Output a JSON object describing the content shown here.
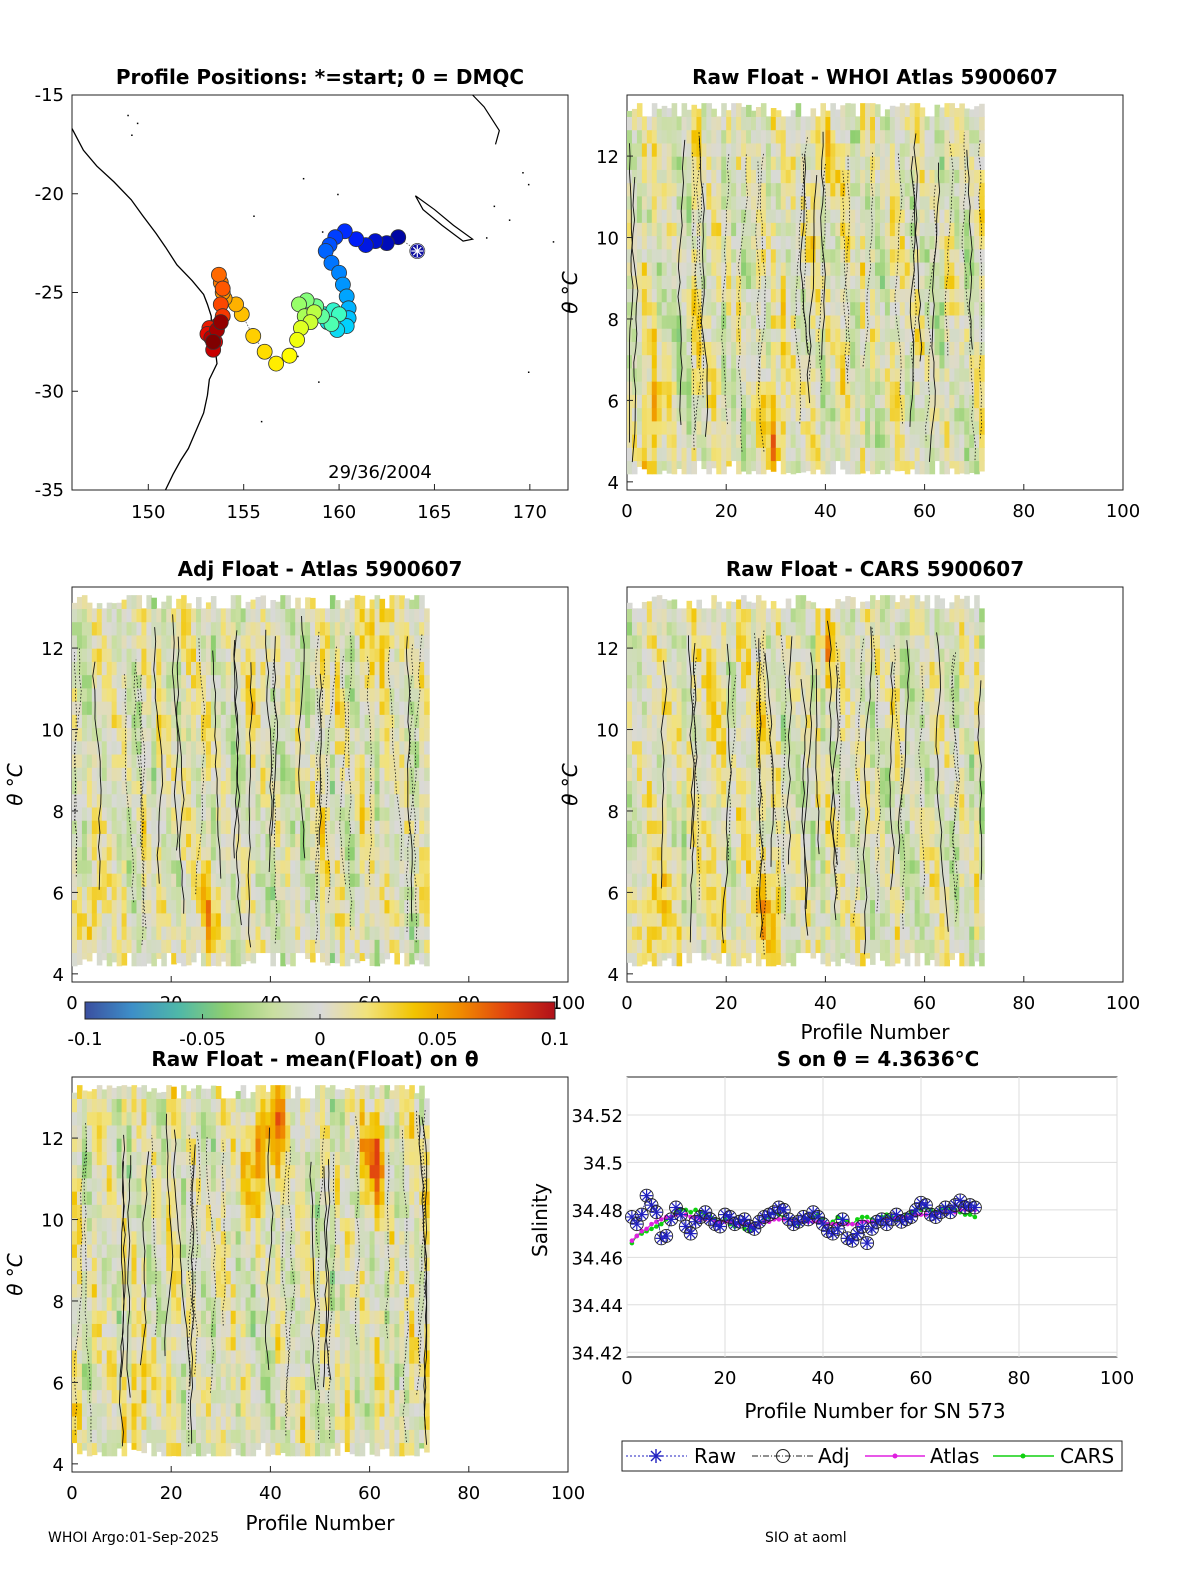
{
  "footer": {
    "left": "WHOI Argo:01-Sep-2025",
    "right": "SIO at aoml"
  },
  "colormap": {
    "stops": [
      "#3b4fa0",
      "#3d8fc8",
      "#4fb8a8",
      "#8fcf70",
      "#c9dfa0",
      "#d9d9d9",
      "#f2e27a",
      "#f2c400",
      "#f08a00",
      "#e04010",
      "#b0101a"
    ],
    "ticks": [
      "-0.1",
      "-0.05",
      "0",
      "0.05",
      "0.1"
    ]
  },
  "chart_data": [
    {
      "id": "map",
      "type": "scatter",
      "title": "Profile Positions: *=start; 0 = DMQC",
      "xlabel": "",
      "ylabel": "",
      "xlim": [
        146,
        172
      ],
      "ylim": [
        -35,
        -15
      ],
      "xticks": [
        "150",
        "155",
        "160",
        "165",
        "170"
      ],
      "yticks": [
        "-15",
        "-20",
        "-25",
        "-30",
        "-35"
      ],
      "annotation": "29/36/2004",
      "start_marker": [
        164.1,
        -22.9
      ],
      "track": [
        [
          164.1,
          -22.9
        ],
        [
          163.1,
          -22.2
        ],
        [
          162.5,
          -22.5
        ],
        [
          161.9,
          -22.4
        ],
        [
          161.4,
          -22.6
        ],
        [
          160.9,
          -22.3
        ],
        [
          160.3,
          -21.9
        ],
        [
          159.8,
          -22.2
        ],
        [
          159.5,
          -22.6
        ],
        [
          159.3,
          -22.9
        ],
        [
          159.6,
          -23.5
        ],
        [
          160.0,
          -24.0
        ],
        [
          160.2,
          -24.6
        ],
        [
          160.4,
          -25.2
        ],
        [
          160.5,
          -25.8
        ],
        [
          160.5,
          -26.3
        ],
        [
          160.4,
          -26.7
        ],
        [
          159.9,
          -26.9
        ],
        [
          159.4,
          -26.5
        ],
        [
          159.2,
          -26.1
        ],
        [
          159.7,
          -25.9
        ],
        [
          160.0,
          -26.1
        ],
        [
          159.6,
          -26.6
        ],
        [
          159.1,
          -26.2
        ],
        [
          158.8,
          -25.7
        ],
        [
          158.3,
          -25.4
        ],
        [
          157.9,
          -25.6
        ],
        [
          158.2,
          -26.2
        ],
        [
          158.7,
          -26.0
        ],
        [
          158.5,
          -26.5
        ],
        [
          158.0,
          -26.8
        ],
        [
          157.8,
          -27.4
        ],
        [
          157.4,
          -28.2
        ],
        [
          156.7,
          -28.6
        ],
        [
          156.1,
          -28.0
        ],
        [
          155.5,
          -27.2
        ],
        [
          154.9,
          -26.1
        ],
        [
          154.6,
          -25.6
        ],
        [
          154.0,
          -25.3
        ],
        [
          153.9,
          -25.0
        ],
        [
          153.8,
          -24.5
        ],
        [
          153.7,
          -24.1
        ],
        [
          153.9,
          -24.8
        ],
        [
          153.8,
          -25.6
        ],
        [
          153.9,
          -26.2
        ],
        [
          153.6,
          -26.7
        ],
        [
          153.2,
          -26.8
        ],
        [
          153.1,
          -27.1
        ],
        [
          153.5,
          -27.5
        ],
        [
          153.4,
          -27.9
        ],
        [
          153.3,
          -27.3
        ],
        [
          153.6,
          -26.9
        ],
        [
          153.8,
          -26.5
        ],
        [
          153.4,
          -27.5
        ]
      ]
    },
    {
      "id": "raw_atlas",
      "type": "heatmap",
      "title": "Raw Float - WHOI Atlas  5900607",
      "xlabel": "",
      "ylabel": "θ °C",
      "xlim": [
        0,
        100
      ],
      "ylim": [
        3.8,
        13.5
      ],
      "xticks": [
        "0",
        "20",
        "40",
        "60",
        "80",
        "100"
      ],
      "yticks": [
        "4",
        "6",
        "8",
        "10",
        "12"
      ],
      "profiles": 72,
      "seed": 11,
      "hotspots": [
        [
          5,
          5.5,
          0.04
        ],
        [
          29,
          5.5,
          0.04
        ],
        [
          40,
          11.8,
          0.03
        ]
      ]
    },
    {
      "id": "adj_atlas",
      "type": "heatmap",
      "title": "Adj Float - Atlas  5900607",
      "xlabel": "",
      "ylabel": "θ °C",
      "xlim": [
        0,
        100
      ],
      "ylim": [
        3.8,
        13.5
      ],
      "xticks": [
        "0",
        "20",
        "40",
        "60",
        "80",
        "100"
      ],
      "yticks": [
        "4",
        "6",
        "8",
        "10",
        "12"
      ],
      "profiles": 72,
      "seed": 23,
      "hotspots": [
        [
          3,
          5.5,
          0.04
        ],
        [
          28,
          5.5,
          0.035
        ],
        [
          37,
          11.2,
          0.03
        ],
        [
          62,
          12.5,
          0.035
        ]
      ]
    },
    {
      "id": "raw_cars",
      "type": "heatmap",
      "title": "Raw Float - CARS  5900607",
      "xlabel": "Profile Number",
      "ylabel": "θ °C",
      "xlim": [
        0,
        100
      ],
      "ylim": [
        3.8,
        13.5
      ],
      "xticks": [
        "0",
        "20",
        "40",
        "60",
        "80",
        "100"
      ],
      "yticks": [
        "4",
        "6",
        "8",
        "10",
        "12"
      ],
      "profiles": 72,
      "seed": 37,
      "hotspots": [
        [
          5,
          5.5,
          0.04
        ],
        [
          29,
          5.5,
          0.04
        ],
        [
          40,
          11.8,
          0.03
        ]
      ]
    },
    {
      "id": "raw_mean",
      "type": "heatmap",
      "title": "Raw Float - mean(Float) on θ",
      "xlabel": "Profile Number",
      "ylabel": "θ °C",
      "xlim": [
        0,
        100
      ],
      "ylim": [
        3.8,
        13.5
      ],
      "xticks": [
        "0",
        "20",
        "40",
        "60",
        "80",
        "100"
      ],
      "yticks": [
        "4",
        "6",
        "8",
        "10",
        "12"
      ],
      "profiles": 72,
      "seed": 51,
      "hotspots": [
        [
          37,
          11.5,
          0.07
        ],
        [
          41,
          12.6,
          0.05
        ],
        [
          60,
          11.5,
          0.07
        ],
        [
          13,
          5.8,
          0.04
        ]
      ]
    },
    {
      "id": "salinity",
      "type": "line",
      "title": "S on θ = 4.3636°C",
      "xlabel": "Profile Number for SN 573",
      "ylabel": "Salinity",
      "xlim": [
        0,
        100
      ],
      "ylim": [
        34.418,
        34.536
      ],
      "xticks": [
        "0",
        "20",
        "40",
        "60",
        "80",
        "100"
      ],
      "yticks": [
        "34.42",
        "34.44",
        "34.46",
        "34.48",
        "34.5",
        "34.52"
      ],
      "legend": [
        "Raw",
        "Adj",
        "Atlas",
        "CARS"
      ],
      "x": [
        1,
        2,
        3,
        4,
        5,
        6,
        7,
        8,
        9,
        10,
        11,
        12,
        13,
        14,
        15,
        16,
        17,
        18,
        19,
        20,
        21,
        22,
        23,
        24,
        25,
        26,
        27,
        28,
        29,
        30,
        31,
        32,
        33,
        34,
        35,
        36,
        37,
        38,
        39,
        40,
        41,
        42,
        43,
        44,
        45,
        46,
        47,
        48,
        49,
        50,
        51,
        52,
        53,
        54,
        55,
        56,
        57,
        58,
        59,
        60,
        61,
        62,
        63,
        64,
        65,
        66,
        67,
        68,
        69,
        70,
        71
      ],
      "series": [
        {
          "name": "Raw",
          "values": [
            34.477,
            34.474,
            34.478,
            34.486,
            34.482,
            34.479,
            34.468,
            34.469,
            34.476,
            34.481,
            34.478,
            34.473,
            34.47,
            34.475,
            34.477,
            34.479,
            34.476,
            34.474,
            34.473,
            34.478,
            34.477,
            34.474,
            34.475,
            34.476,
            34.473,
            34.472,
            34.475,
            34.477,
            34.478,
            34.479,
            34.481,
            34.48,
            34.476,
            34.474,
            34.475,
            34.477,
            34.476,
            34.479,
            34.477,
            34.474,
            34.471,
            34.47,
            34.472,
            34.476,
            34.468,
            34.467,
            34.47,
            34.473,
            34.466,
            34.472,
            34.475,
            34.476,
            34.474,
            34.476,
            34.478,
            34.475,
            34.476,
            34.477,
            34.48,
            34.483,
            34.482,
            34.478,
            34.477,
            34.479,
            34.481,
            34.479,
            34.482,
            34.484,
            34.481,
            34.482,
            34.481
          ]
        },
        {
          "name": "Adj",
          "values": [
            34.477,
            34.474,
            34.478,
            34.486,
            34.482,
            34.479,
            34.468,
            34.469,
            34.476,
            34.481,
            34.478,
            34.473,
            34.47,
            34.475,
            34.477,
            34.479,
            34.476,
            34.474,
            34.473,
            34.478,
            34.477,
            34.474,
            34.475,
            34.476,
            34.473,
            34.472,
            34.475,
            34.477,
            34.478,
            34.479,
            34.481,
            34.48,
            34.476,
            34.474,
            34.475,
            34.477,
            34.476,
            34.479,
            34.477,
            34.474,
            34.471,
            34.47,
            34.472,
            34.476,
            34.468,
            34.467,
            34.47,
            34.473,
            34.466,
            34.472,
            34.475,
            34.476,
            34.474,
            34.476,
            34.478,
            34.475,
            34.476,
            34.477,
            34.48,
            34.483,
            34.482,
            34.478,
            34.477,
            34.479,
            34.481,
            34.479,
            34.482,
            34.484,
            34.481,
            34.482,
            34.481
          ]
        },
        {
          "name": "Atlas",
          "values": [
            34.467,
            34.469,
            34.471,
            34.472,
            34.474,
            34.475,
            34.476,
            34.477,
            34.477,
            34.478,
            34.478,
            34.478,
            34.477,
            34.477,
            34.476,
            34.476,
            34.476,
            34.475,
            34.475,
            34.475,
            34.475,
            34.474,
            34.474,
            34.474,
            34.474,
            34.473,
            34.474,
            34.475,
            34.475,
            34.476,
            34.476,
            34.476,
            34.476,
            34.475,
            34.475,
            34.475,
            34.475,
            34.475,
            34.475,
            34.475,
            34.474,
            34.474,
            34.474,
            34.474,
            34.474,
            34.474,
            34.474,
            34.475,
            34.475,
            34.475,
            34.475,
            34.476,
            34.476,
            34.476,
            34.477,
            34.477,
            34.477,
            34.477,
            34.478,
            34.478,
            34.478,
            34.478,
            34.478,
            34.479,
            34.479,
            34.479,
            34.479,
            34.48,
            34.48,
            34.48,
            34.48
          ]
        },
        {
          "name": "CARS",
          "values": [
            34.466,
            34.469,
            34.47,
            34.471,
            34.472,
            34.473,
            34.474,
            34.476,
            34.477,
            34.479,
            34.48,
            34.48,
            34.479,
            34.48,
            34.479,
            34.478,
            34.477,
            34.476,
            34.475,
            34.476,
            34.474,
            34.473,
            34.475,
            34.472,
            34.471,
            34.473,
            34.474,
            34.476,
            34.477,
            34.479,
            34.478,
            34.477,
            34.476,
            34.474,
            34.474,
            34.475,
            34.476,
            34.477,
            34.478,
            34.476,
            34.474,
            34.475,
            34.477,
            34.476,
            34.475,
            34.474,
            34.476,
            34.477,
            34.477,
            34.476,
            34.475,
            34.477,
            34.478,
            34.477,
            34.476,
            34.477,
            34.478,
            34.479,
            34.48,
            34.48,
            34.481,
            34.48,
            34.479,
            34.48,
            34.481,
            34.48,
            34.48,
            34.479,
            34.478,
            34.478,
            34.477
          ]
        }
      ]
    }
  ]
}
